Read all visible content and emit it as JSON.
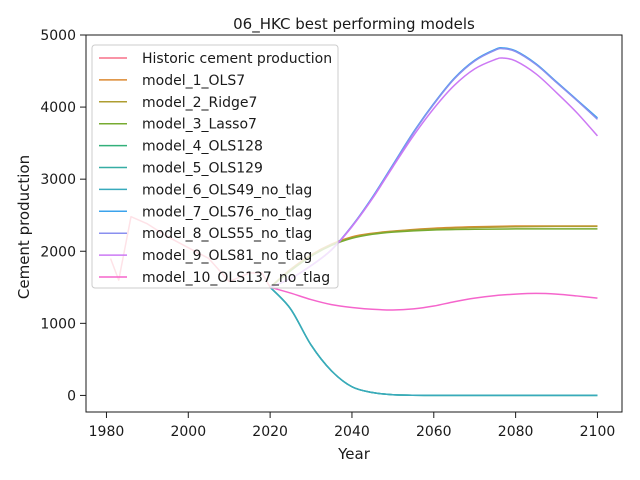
{
  "chart_data": {
    "type": "line",
    "title": "06_HKC best performing models",
    "xlabel": "Year",
    "ylabel": "Cement production",
    "xlim": [
      1975,
      2106
    ],
    "ylim": [
      -230,
      5000
    ],
    "xticks": [
      1980,
      2000,
      2020,
      2040,
      2060,
      2080,
      2100
    ],
    "yticks": [
      0,
      1000,
      2000,
      3000,
      4000,
      5000
    ],
    "legend_position": "upper-left",
    "series": [
      {
        "name": "Historic cement production",
        "color": "#f77189",
        "x": [
          1981,
          1983,
          1986,
          1990,
          1995,
          2000,
          2005,
          2010,
          2015,
          2018,
          2020
        ],
        "y": [
          1900,
          1600,
          2480,
          2380,
          2200,
          2050,
          1900,
          1580,
          1700,
          1700,
          1500
        ]
      },
      {
        "name": "model_1_OLS7",
        "color": "#dc8932",
        "x": [
          2020,
          2025,
          2030,
          2035,
          2040,
          2045,
          2050,
          2060,
          2070,
          2080,
          2090,
          2100
        ],
        "y": [
          1500,
          1750,
          1950,
          2100,
          2200,
          2250,
          2280,
          2320,
          2340,
          2350,
          2350,
          2350
        ]
      },
      {
        "name": "model_2_Ridge7",
        "color": "#ae9d31",
        "x": [
          2020,
          2025,
          2030,
          2035,
          2040,
          2045,
          2050,
          2060,
          2070,
          2080,
          2090,
          2100
        ],
        "y": [
          1500,
          1740,
          1940,
          2090,
          2190,
          2245,
          2275,
          2310,
          2330,
          2340,
          2345,
          2345
        ]
      },
      {
        "name": "model_3_Lasso7",
        "color": "#77ab31",
        "x": [
          2020,
          2025,
          2030,
          2035,
          2040,
          2045,
          2050,
          2060,
          2070,
          2080,
          2090,
          2100
        ],
        "y": [
          1500,
          1730,
          1930,
          2080,
          2180,
          2235,
          2265,
          2295,
          2305,
          2310,
          2310,
          2310
        ]
      },
      {
        "name": "model_4_OLS128",
        "color": "#33b07a",
        "x": [
          2020,
          2025,
          2030,
          2035,
          2040,
          2045,
          2050,
          2060,
          2070,
          2080,
          2090,
          2100
        ],
        "y": [
          1500,
          1200,
          700,
          340,
          120,
          40,
          10,
          0,
          0,
          0,
          0,
          0
        ]
      },
      {
        "name": "model_5_OLS129",
        "color": "#36ada4",
        "x": [
          2020,
          2025,
          2030,
          2035,
          2040,
          2045,
          2050,
          2060,
          2070,
          2080,
          2090,
          2100
        ],
        "y": [
          1500,
          1200,
          700,
          340,
          120,
          40,
          10,
          0,
          0,
          0,
          0,
          0
        ]
      },
      {
        "name": "model_6_OLS49_no_tlag",
        "color": "#38aabc",
        "x": [
          2020,
          2025,
          2030,
          2035,
          2040,
          2045,
          2050,
          2060,
          2070,
          2080,
          2090,
          2100
        ],
        "y": [
          1500,
          1200,
          700,
          340,
          120,
          40,
          10,
          0,
          0,
          0,
          0,
          0
        ]
      },
      {
        "name": "model_7_OLS76_no_tlag",
        "color": "#3ba3ec",
        "x": [
          2020,
          2025,
          2030,
          2035,
          2040,
          2045,
          2050,
          2055,
          2060,
          2065,
          2070,
          2075,
          2077,
          2080,
          2085,
          2090,
          2095,
          2100
        ],
        "y": [
          1500,
          1620,
          1800,
          2020,
          2350,
          2750,
          3200,
          3650,
          4050,
          4400,
          4650,
          4800,
          4820,
          4780,
          4600,
          4350,
          4100,
          3850
        ]
      },
      {
        "name": "model_8_OLS55_no_tlag",
        "color": "#8a8fef",
        "x": [
          2020,
          2025,
          2030,
          2035,
          2040,
          2045,
          2050,
          2055,
          2060,
          2065,
          2070,
          2075,
          2077,
          2080,
          2085,
          2090,
          2095,
          2100
        ],
        "y": [
          1500,
          1620,
          1800,
          2020,
          2350,
          2740,
          3190,
          3640,
          4040,
          4390,
          4640,
          4790,
          4810,
          4770,
          4590,
          4340,
          4090,
          3830
        ]
      },
      {
        "name": "model_9_OLS81_no_tlag",
        "color": "#cc79f4",
        "x": [
          2020,
          2025,
          2030,
          2035,
          2040,
          2045,
          2050,
          2055,
          2060,
          2065,
          2070,
          2075,
          2077,
          2080,
          2085,
          2090,
          2095,
          2100
        ],
        "y": [
          1500,
          1620,
          1800,
          2020,
          2340,
          2730,
          3170,
          3600,
          3980,
          4300,
          4530,
          4660,
          4680,
          4640,
          4460,
          4200,
          3920,
          3600
        ]
      },
      {
        "name": "model_10_OLS137_no_tlag",
        "color": "#f565cc",
        "x": [
          2020,
          2025,
          2030,
          2035,
          2040,
          2045,
          2050,
          2055,
          2060,
          2065,
          2070,
          2075,
          2080,
          2085,
          2090,
          2095,
          2100
        ],
        "y": [
          1500,
          1420,
          1330,
          1260,
          1220,
          1195,
          1185,
          1200,
          1240,
          1300,
          1350,
          1385,
          1405,
          1415,
          1405,
          1380,
          1350
        ]
      }
    ]
  }
}
